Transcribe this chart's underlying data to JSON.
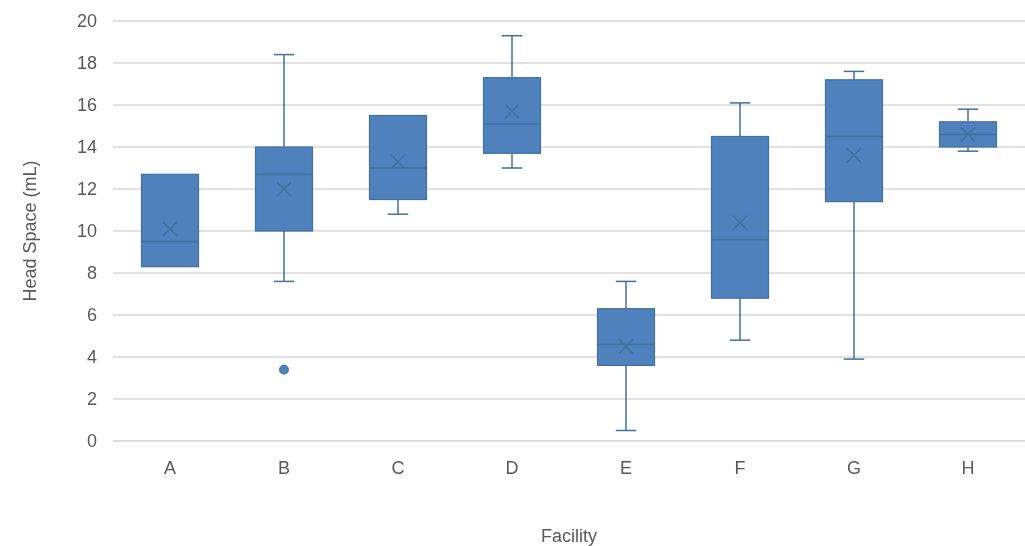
{
  "chart_data": {
    "type": "box",
    "xlabel": "Facility",
    "ylabel": "Head Space (mL)",
    "categories": [
      "A",
      "B",
      "C",
      "D",
      "E",
      "F",
      "G",
      "H"
    ],
    "color": "#4f81bd",
    "boxes": [
      {
        "low": 8.3,
        "q1": 8.3,
        "median": 9.5,
        "q3": 12.7,
        "high": 12.7,
        "mean": 10.1
      },
      {
        "low": 7.6,
        "q1": 10.0,
        "median": 12.7,
        "q3": 14.0,
        "high": 18.4,
        "mean": 12.0,
        "outliers": [
          3.4
        ]
      },
      {
        "low": 10.8,
        "q1": 11.5,
        "median": 13.0,
        "q3": 15.5,
        "high": 15.5,
        "mean": 13.3
      },
      {
        "low": 13.0,
        "q1": 13.7,
        "median": 15.1,
        "q3": 17.3,
        "high": 19.3,
        "mean": 15.7
      },
      {
        "low": 0.5,
        "q1": 3.6,
        "median": 4.6,
        "q3": 6.3,
        "high": 7.6,
        "mean": 4.5
      },
      {
        "low": 4.8,
        "q1": 6.8,
        "median": 9.6,
        "q3": 14.5,
        "high": 16.1,
        "mean": 10.4
      },
      {
        "low": 3.9,
        "q1": 11.4,
        "median": 14.5,
        "q3": 17.2,
        "high": 17.6,
        "mean": 13.6
      },
      {
        "low": 13.8,
        "q1": 14.0,
        "median": 14.6,
        "q3": 15.2,
        "high": 15.8,
        "mean": 14.6
      }
    ],
    "ylim": [
      0,
      20
    ],
    "yticks": [
      0,
      2,
      4,
      6,
      8,
      10,
      12,
      14,
      16,
      18,
      20
    ],
    "grid": "y",
    "legend": false
  }
}
